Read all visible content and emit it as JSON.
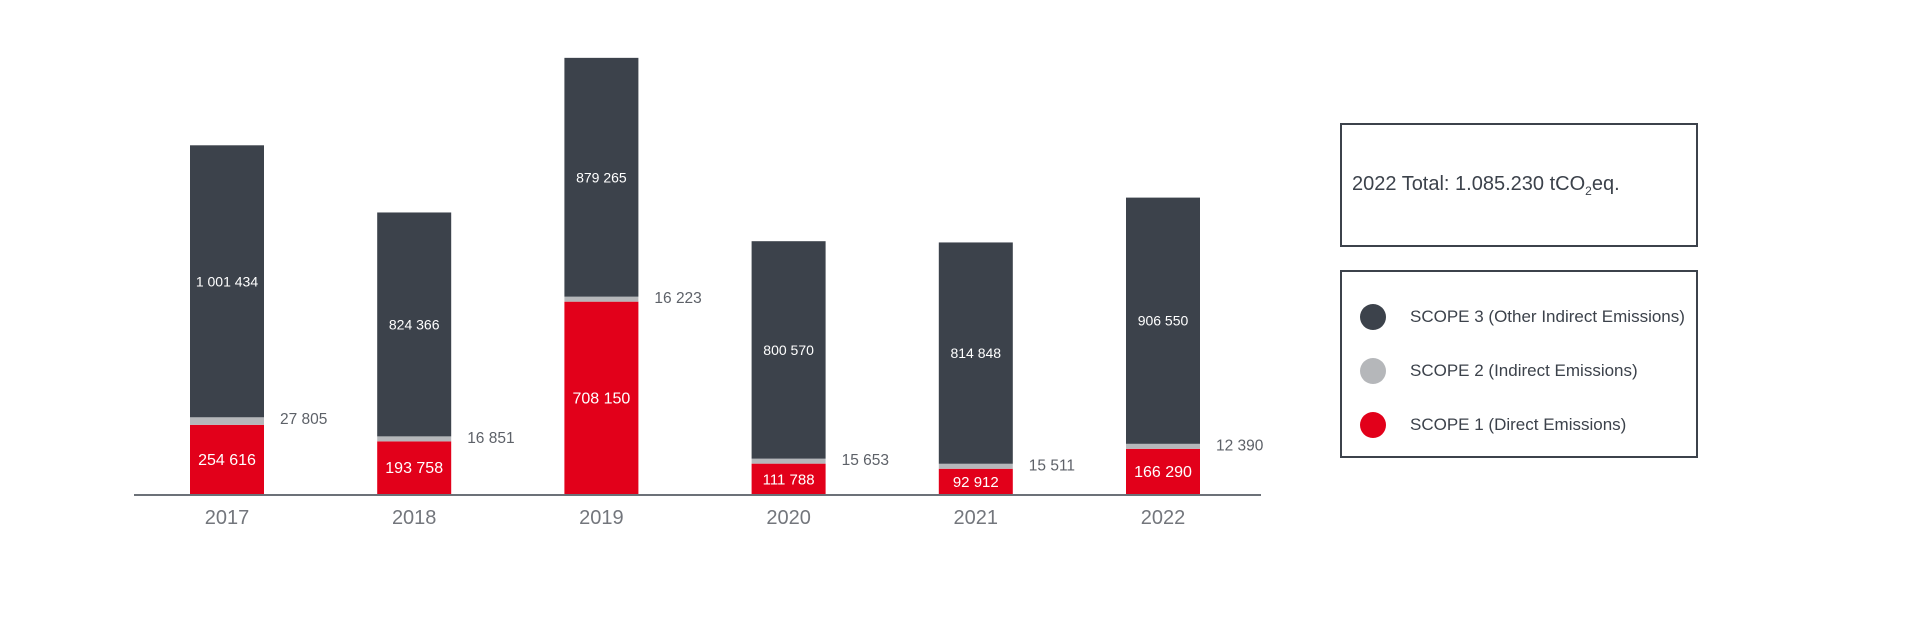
{
  "chart_data": {
    "type": "bar",
    "stacked": true,
    "categories": [
      "2017",
      "2018",
      "2019",
      "2020",
      "2021",
      "2022"
    ],
    "series": [
      {
        "name": "SCOPE 1 (Direct Emissions)",
        "values": [
          254616,
          193758,
          708150,
          111788,
          92912,
          166290
        ],
        "labels": [
          "254 616",
          "193 758",
          "708 150",
          "111 788",
          "92 912",
          "166 290"
        ],
        "color": "#e2001a"
      },
      {
        "name": "SCOPE 2 (Indirect Emissions)",
        "values": [
          27805,
          16851,
          16223,
          15653,
          15511,
          12390
        ],
        "labels": [
          "27 805",
          "16 851",
          "16 223",
          "15 653",
          "15 511",
          "12 390"
        ],
        "color": "#b5b7ba"
      },
      {
        "name": "SCOPE 3 (Other Indirect Emissions)",
        "values": [
          1001434,
          824366,
          879265,
          800570,
          814848,
          906550
        ],
        "labels": [
          "1 001 434",
          "824 366",
          "879 265",
          "800 570",
          "814 848",
          "906 550"
        ],
        "color": "#3c424b"
      }
    ],
    "ylim": [
      0,
      1620000
    ],
    "grid": false,
    "legend_position": "right",
    "annotation": {
      "prefix": "2022 Total: 1.085.230 tCO",
      "subscript": "2",
      "suffix": "eq."
    }
  },
  "colors": {
    "axis": "#3c424b",
    "tick_label": "#73767c",
    "outside_label": "#5d6168",
    "inside_label": "#ffffff"
  }
}
